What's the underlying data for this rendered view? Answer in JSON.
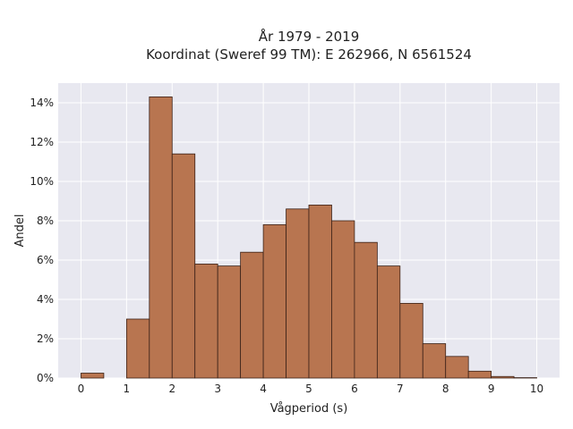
{
  "chart_data": {
    "type": "bar",
    "title_lines": [
      "År 1979 - 2019",
      "Koordinat (Sweref 99 TM): E 262966, N 6561524"
    ],
    "xlabel": "Vågperiod (s)",
    "ylabel": "Andel",
    "xlim": [
      -0.5,
      10.5
    ],
    "ylim": [
      0,
      0.15
    ],
    "x_ticks": [
      0,
      1,
      2,
      3,
      4,
      5,
      6,
      7,
      8,
      9,
      10
    ],
    "y_ticks": [
      0,
      0.02,
      0.04,
      0.06,
      0.08,
      0.1,
      0.12,
      0.14
    ],
    "y_tick_labels": [
      "0%",
      "2%",
      "4%",
      "6%",
      "8%",
      "10%",
      "12%",
      "14%"
    ],
    "bin_width": 0.5,
    "bins": [
      {
        "x0": 0.0,
        "value": 0.0025
      },
      {
        "x0": 0.5,
        "value": 0.0
      },
      {
        "x0": 1.0,
        "value": 0.03
      },
      {
        "x0": 1.5,
        "value": 0.143
      },
      {
        "x0": 2.0,
        "value": 0.114
      },
      {
        "x0": 2.5,
        "value": 0.058
      },
      {
        "x0": 3.0,
        "value": 0.057
      },
      {
        "x0": 3.5,
        "value": 0.064
      },
      {
        "x0": 4.0,
        "value": 0.078
      },
      {
        "x0": 4.5,
        "value": 0.086
      },
      {
        "x0": 5.0,
        "value": 0.088
      },
      {
        "x0": 5.5,
        "value": 0.08
      },
      {
        "x0": 6.0,
        "value": 0.069
      },
      {
        "x0": 6.5,
        "value": 0.057
      },
      {
        "x0": 7.0,
        "value": 0.038
      },
      {
        "x0": 7.5,
        "value": 0.0175
      },
      {
        "x0": 8.0,
        "value": 0.011
      },
      {
        "x0": 8.5,
        "value": 0.0035
      },
      {
        "x0": 9.0,
        "value": 0.0008
      },
      {
        "x0": 9.5,
        "value": 0.0002
      }
    ],
    "grid": true,
    "colors": {
      "bar_fill": "#b87550",
      "bar_stroke": "#3b2218",
      "plot_background": "#e8e8f0",
      "grid": "#ffffff"
    }
  }
}
